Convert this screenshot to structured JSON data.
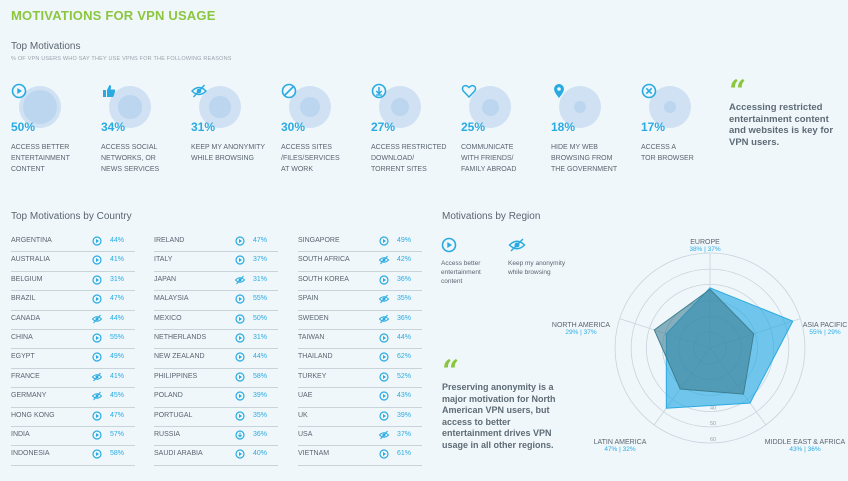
{
  "title": "MOTIVATIONS FOR VPN USAGE",
  "top_motivations": {
    "heading": "Top Motivations",
    "subheading": "% OF VPN USERS WHO SAY THEY USE VPNS FOR THE FOLLOWING REASONS",
    "items": [
      {
        "icon": "play-icon",
        "pct": "50%",
        "label": "ACCESS BETTER\nENTERTAINMENT\nCONTENT",
        "fraction": 0.5
      },
      {
        "icon": "thumbs-up-icon",
        "pct": "34%",
        "label": "ACCESS SOCIAL\nNETWORKS, OR\nNEWS SERVICES",
        "fraction": 0.34
      },
      {
        "icon": "eye-slash-icon",
        "pct": "31%",
        "label": "KEEP MY ANONYMITY\nWHILE BROWSING",
        "fraction": 0.31
      },
      {
        "icon": "blocked-icon",
        "pct": "30%",
        "label": "ACCESS SITES\n/FILES/SERVICES\nAT WORK",
        "fraction": 0.3
      },
      {
        "icon": "download-icon",
        "pct": "27%",
        "label": "ACCESS RESTRICTED\nDOWNLOAD/\nTORRENT SITES",
        "fraction": 0.27
      },
      {
        "icon": "heart-icon",
        "pct": "25%",
        "label": "COMMUNICATE\nWITH FRIENDS/\nFAMILY ABROAD",
        "fraction": 0.25
      },
      {
        "icon": "map-pin-icon",
        "pct": "18%",
        "label": "HIDE MY WEB\nBROWSING FROM\nTHE GOVERNMENT",
        "fraction": 0.18
      },
      {
        "icon": "close-circle-icon",
        "pct": "17%",
        "label": "ACCESS A\nTOR BROWSER",
        "fraction": 0.17
      }
    ]
  },
  "quote_top": "Accessing restricted entertainment content and websites is key for VPN users.",
  "by_country": {
    "heading": "Top Motivations by Country",
    "columns": [
      [
        {
          "name": "ARGENTINA",
          "icon": "play",
          "value": "44%"
        },
        {
          "name": "AUSTRALIA",
          "icon": "play",
          "value": "41%"
        },
        {
          "name": "BELGIUM",
          "icon": "play",
          "value": "31%"
        },
        {
          "name": "BRAZIL",
          "icon": "play",
          "value": "47%"
        },
        {
          "name": "CANADA",
          "icon": "eye",
          "value": "44%"
        },
        {
          "name": "CHINA",
          "icon": "play",
          "value": "55%"
        },
        {
          "name": "EGYPT",
          "icon": "play",
          "value": "49%"
        },
        {
          "name": "FRANCE",
          "icon": "eye",
          "value": "41%"
        },
        {
          "name": "GERMANY",
          "icon": "eye",
          "value": "45%"
        },
        {
          "name": "HONG KONG",
          "icon": "play",
          "value": "47%"
        },
        {
          "name": "INDIA",
          "icon": "play",
          "value": "57%"
        },
        {
          "name": "INDONESIA",
          "icon": "play",
          "value": "58%"
        }
      ],
      [
        {
          "name": "IRELAND",
          "icon": "play",
          "value": "47%"
        },
        {
          "name": "ITALY",
          "icon": "play",
          "value": "37%"
        },
        {
          "name": "JAPAN",
          "icon": "eye",
          "value": "31%"
        },
        {
          "name": "MALAYSIA",
          "icon": "play",
          "value": "55%"
        },
        {
          "name": "MEXICO",
          "icon": "play",
          "value": "50%"
        },
        {
          "name": "NETHERLANDS",
          "icon": "play",
          "value": "31%"
        },
        {
          "name": "NEW ZEALAND",
          "icon": "play",
          "value": "44%"
        },
        {
          "name": "PHILIPPINES",
          "icon": "play",
          "value": "58%"
        },
        {
          "name": "POLAND",
          "icon": "play",
          "value": "39%"
        },
        {
          "name": "PORTUGAL",
          "icon": "play",
          "value": "35%"
        },
        {
          "name": "RUSSIA",
          "icon": "download",
          "value": "36%"
        },
        {
          "name": "SAUDI ARABIA",
          "icon": "play",
          "value": "40%"
        }
      ],
      [
        {
          "name": "SINGAPORE",
          "icon": "play",
          "value": "49%"
        },
        {
          "name": "SOUTH AFRICA",
          "icon": "eye",
          "value": "42%"
        },
        {
          "name": "SOUTH KOREA",
          "icon": "play",
          "value": "36%"
        },
        {
          "name": "SPAIN",
          "icon": "eye",
          "value": "35%"
        },
        {
          "name": "SWEDEN",
          "icon": "eye",
          "value": "36%"
        },
        {
          "name": "TAIWAN",
          "icon": "play",
          "value": "44%"
        },
        {
          "name": "THAILAND",
          "icon": "play",
          "value": "62%"
        },
        {
          "name": "TURKEY",
          "icon": "play",
          "value": "52%"
        },
        {
          "name": "UAE",
          "icon": "play",
          "value": "43%"
        },
        {
          "name": "UK",
          "icon": "play",
          "value": "39%"
        },
        {
          "name": "USA",
          "icon": "eye",
          "value": "37%"
        },
        {
          "name": "VIETNAM",
          "icon": "play",
          "value": "61%"
        }
      ]
    ]
  },
  "by_region": {
    "heading": "Motivations by Region",
    "legend": [
      {
        "icon": "play-icon",
        "label": "Access better\nentertainment\ncontent"
      },
      {
        "icon": "eye-slash-icon",
        "label": "Keep my anonymity\nwhile browsing"
      }
    ],
    "quote": "Preserving anonymity is a major motivation for North American VPN users, but access to better entertainment drives VPN usage in all other regions.",
    "colors": {
      "entertainment": "#29abe2",
      "anonymity": "#3d7f92"
    }
  },
  "chart_data": {
    "type": "radar",
    "categories": [
      "EUROPE",
      "ASIA PACIFIC",
      "MIDDLE EAST & AFRICA",
      "LATIN AMERICA",
      "NORTH AMERICA"
    ],
    "value_labels": [
      "38% | 37%",
      "55% | 29%",
      "43% | 36%",
      "47% | 32%",
      "29% | 37%"
    ],
    "series": [
      {
        "values": [
          38,
          55,
          43,
          47,
          29
        ]
      },
      {
        "values": [
          37,
          29,
          36,
          32,
          37
        ]
      }
    ],
    "rlim": [
      0,
      60
    ],
    "tick_labels": [
      "60",
      "50",
      "40"
    ]
  }
}
